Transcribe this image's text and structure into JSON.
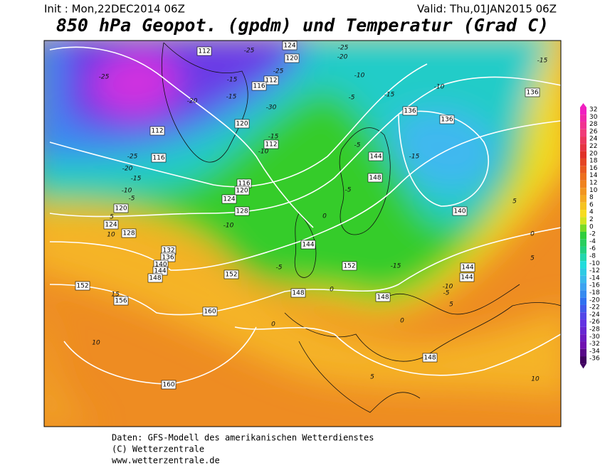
{
  "header": {
    "init": "Init : Mon,22DEC2014 06Z",
    "valid": "Valid: Thu,01JAN2015 06Z",
    "title": "850 hPa Geopot. (gpdm) und Temperatur (Grad C)"
  },
  "colorbar": {
    "labels": [
      32,
      30,
      28,
      26,
      24,
      22,
      20,
      18,
      16,
      14,
      12,
      10,
      8,
      6,
      4,
      2,
      0,
      -2,
      -4,
      -6,
      -8,
      -10,
      -12,
      -14,
      -16,
      -18,
      -20,
      -22,
      -24,
      -26,
      -28,
      -30,
      -32,
      -34,
      -36
    ]
  },
  "map": {
    "contour_labels": [
      "112",
      "-25",
      "124",
      "-25",
      "-20",
      "120",
      "-25",
      "-10",
      "-15",
      "112",
      "116",
      "-15",
      "-20",
      "-5",
      "-15",
      "-10",
      "-15",
      "136",
      "-25",
      "-30",
      "136",
      "136",
      "112",
      "120",
      "-15",
      "112",
      "-10",
      "-5",
      "144",
      "-15",
      "-25",
      "116",
      "-20",
      "-15",
      "148",
      "116",
      "120",
      "-10",
      "-5",
      "-5",
      "124",
      "5",
      "120",
      "128",
      "140",
      "124",
      "5",
      "-10",
      "0",
      "0",
      "10",
      "128",
      "144",
      "132",
      "136",
      "140",
      "144",
      "148",
      "-5",
      "152",
      "-15",
      "152",
      "144",
      "144",
      "5",
      "152",
      "148",
      "0",
      "-10",
      "-5",
      "148",
      "15",
      "156",
      "5",
      "160",
      "0",
      "0",
      "10",
      "148",
      "5",
      "10",
      "160"
    ]
  },
  "footer": {
    "lines": [
      "Daten: GFS-Modell des amerikanischen Wetterdienstes",
      "(C) Wetterzentrale",
      "www.wetterzentrale.de"
    ]
  }
}
